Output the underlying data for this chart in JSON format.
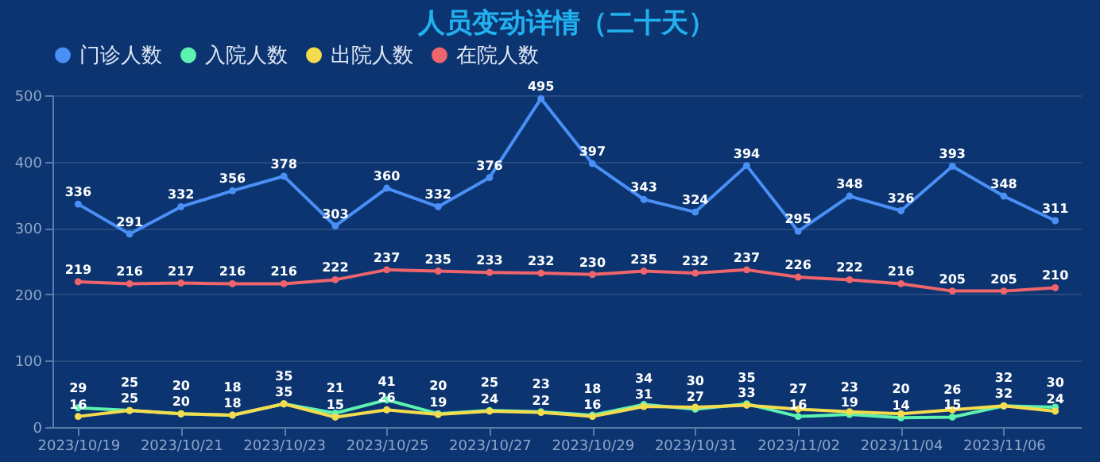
{
  "chart_data": {
    "type": "line",
    "title": "人员变动详情（二十天）",
    "categories": [
      "2023/10/19",
      null,
      "2023/10/21",
      null,
      "2023/10/23",
      null,
      "2023/10/25",
      null,
      "2023/10/27",
      null,
      "2023/10/29",
      null,
      "2023/10/31",
      null,
      "2023/11/02",
      null,
      "2023/11/04",
      null,
      "2023/11/06",
      null
    ],
    "series": [
      {
        "name": "门诊人数",
        "color": "#4a8ff5",
        "values": [
          336,
          291,
          332,
          356,
          378,
          303,
          360,
          332,
          376,
          495,
          397,
          343,
          324,
          394,
          295,
          348,
          326,
          393,
          348,
          311
        ]
      },
      {
        "name": "入院人数",
        "color": "#5ef2b0",
        "values": [
          29,
          25,
          20,
          18,
          35,
          21,
          41,
          20,
          25,
          23,
          18,
          34,
          27,
          35,
          16,
          19,
          14,
          15,
          32,
          30
        ]
      },
      {
        "name": "出院人数",
        "color": "#f5dc4f",
        "values": [
          16,
          25,
          20,
          18,
          35,
          15,
          26,
          19,
          24,
          22,
          16,
          31,
          30,
          33,
          27,
          23,
          20,
          26,
          32,
          24
        ]
      },
      {
        "name": "在院人数",
        "color": "#f0646c",
        "values": [
          219,
          216,
          217,
          216,
          216,
          222,
          237,
          235,
          233,
          232,
          230,
          235,
          232,
          237,
          226,
          222,
          216,
          205,
          205,
          210
        ]
      }
    ],
    "ylim": [
      0,
      500
    ],
    "yticks": [
      0,
      100,
      200,
      300,
      400,
      500
    ],
    "grid": "y",
    "legend": "top",
    "marker": "circle",
    "line_style": "solid",
    "data_labels": true
  }
}
